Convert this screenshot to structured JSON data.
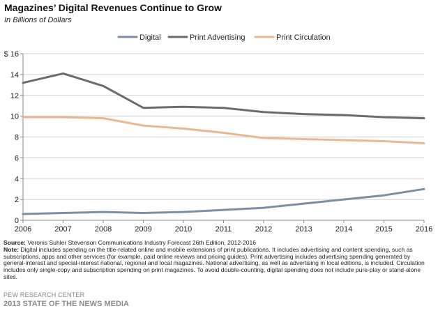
{
  "colors": {
    "digital": "#7a8fa1",
    "print_advertising": "#6b6b6b",
    "print_circulation": "#e8b894",
    "axis": "#888888",
    "grid": "#d0d0d0"
  },
  "chart_data": {
    "type": "line",
    "title": "Magazines’ Digital Revenues  Continue to Grow",
    "subtitle": "In Billions of Dollars",
    "xlabel": "",
    "ylabel": "",
    "x": [
      "2006",
      "2007",
      "2008",
      "2009",
      "2010",
      "2011",
      "2012",
      "2013",
      "2014",
      "2015",
      "2016"
    ],
    "ylim": [
      0,
      16
    ],
    "yticks": [
      {
        "value": 0,
        "label": "0"
      },
      {
        "value": 2,
        "label": "2"
      },
      {
        "value": 4,
        "label": "4"
      },
      {
        "value": 6,
        "label": "6"
      },
      {
        "value": 8,
        "label": "8"
      },
      {
        "value": 10,
        "label": "10"
      },
      {
        "value": 12,
        "label": "12"
      },
      {
        "value": 14,
        "label": "14"
      },
      {
        "value": 16,
        "label": "$ 16"
      }
    ],
    "grid": "horizontal",
    "legend_position": "top",
    "series": [
      {
        "name": "Digital",
        "key": "digital",
        "values": [
          0.6,
          0.7,
          0.8,
          0.7,
          0.8,
          1.0,
          1.2,
          1.6,
          2.0,
          2.4,
          3.0
        ]
      },
      {
        "name": "Print Advertising",
        "key": "print_advertising",
        "values": [
          13.2,
          14.1,
          12.9,
          10.8,
          10.9,
          10.8,
          10.4,
          10.2,
          10.1,
          9.9,
          9.8
        ]
      },
      {
        "name": "Print Circulation",
        "key": "print_circulation",
        "values": [
          9.9,
          9.9,
          9.8,
          9.1,
          8.8,
          8.4,
          7.9,
          7.8,
          7.7,
          7.6,
          7.4
        ]
      }
    ]
  },
  "footer": {
    "source_label": "Source:",
    "source_text": " Veronis Suhler Stevenson Communications Industry Forecast 26th Edition, 2012-2016",
    "note_label": "Note:",
    "note_text": " Digital includes spending on the title-related online and mobile extensions of print publications. It includes advertising and content spending, such as subscriptions, apps and other services (for example, paid online reviews and pricing guides).  Print advertising includes advertising spending generated by general-interest and special-interest national, regional and local magazines. National advertising, as well as advertising in local editions, is included. Circulation includes only single-copy and subscription spending on print magazines.  To avoid double-counting, digital spending does not include pure-play  or stand-alone sites.",
    "brand": "PEW RESEARCH CENTER",
    "report": "2013 STATE OF THE NEWS MEDIA"
  }
}
